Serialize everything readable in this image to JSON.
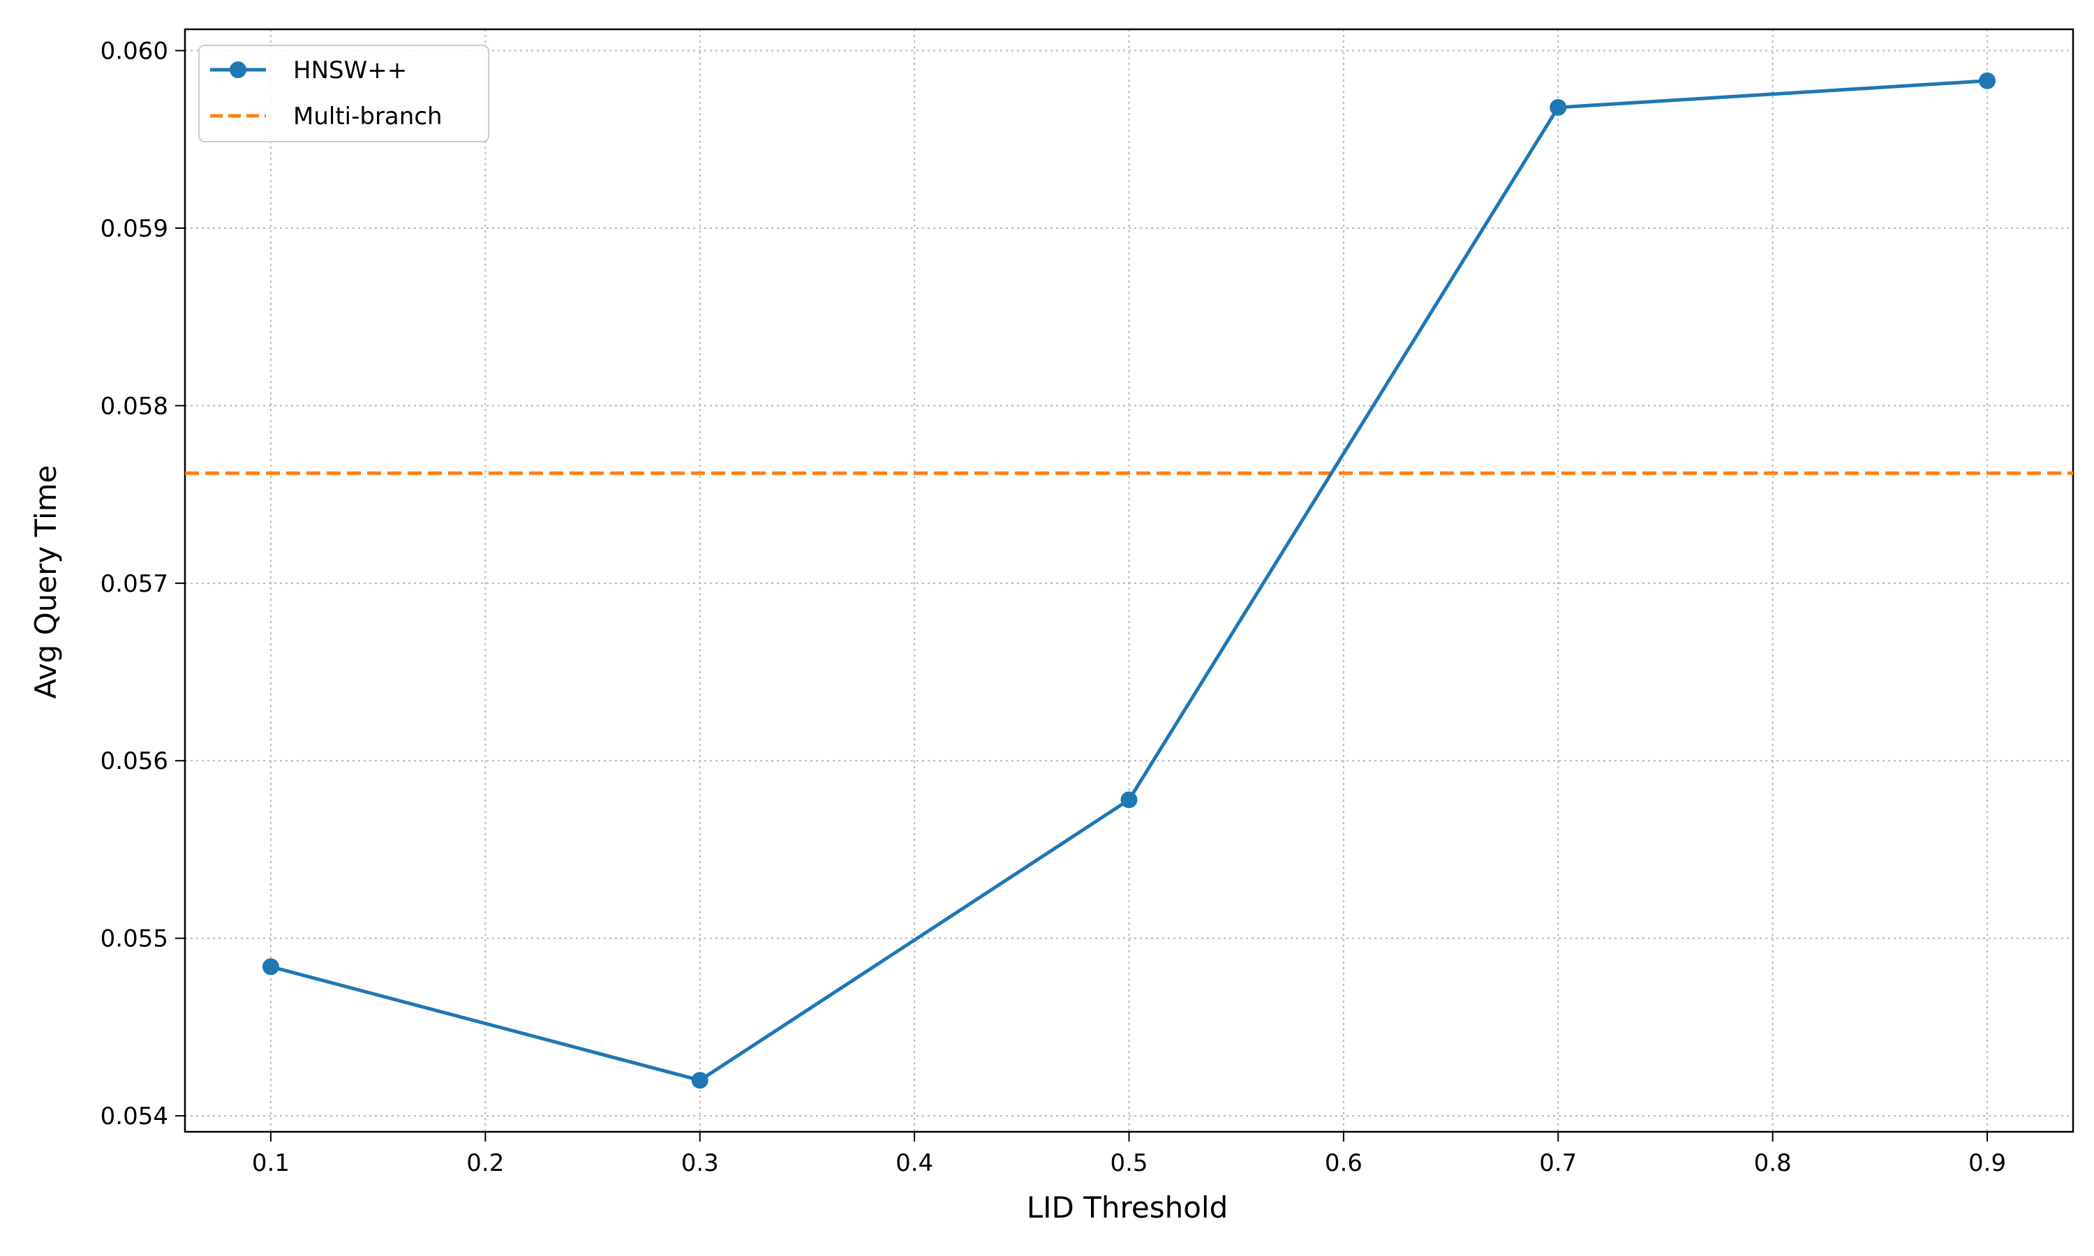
{
  "chart_data": {
    "type": "line",
    "title": "",
    "xlabel": "LID Threshold",
    "ylabel": "Avg Query Time",
    "xlim": [
      0.06,
      0.94
    ],
    "ylim": [
      0.05391,
      0.06012
    ],
    "x_ticks": [
      0.1,
      0.2,
      0.3,
      0.4,
      0.5,
      0.6,
      0.7,
      0.8,
      0.9
    ],
    "x_tick_labels": [
      "0.1",
      "0.2",
      "0.3",
      "0.4",
      "0.5",
      "0.6",
      "0.7",
      "0.8",
      "0.9"
    ],
    "y_ticks": [
      0.054,
      0.055,
      0.056,
      0.057,
      0.058,
      0.059,
      0.06
    ],
    "y_tick_labels": [
      "0.054",
      "0.055",
      "0.056",
      "0.057",
      "0.058",
      "0.059",
      "0.060"
    ],
    "grid": true,
    "legend_position": "top-left",
    "series": [
      {
        "name": "HNSW++",
        "kind": "line-with-markers",
        "color": "#1f77b4",
        "x": [
          0.1,
          0.3,
          0.5,
          0.7,
          0.9
        ],
        "values": [
          0.05484,
          0.0542,
          0.05578,
          0.05968,
          0.05983
        ]
      },
      {
        "name": "Multi-branch",
        "kind": "horizontal-dashed",
        "color": "#ff7f0e",
        "value": 0.05762
      }
    ]
  }
}
